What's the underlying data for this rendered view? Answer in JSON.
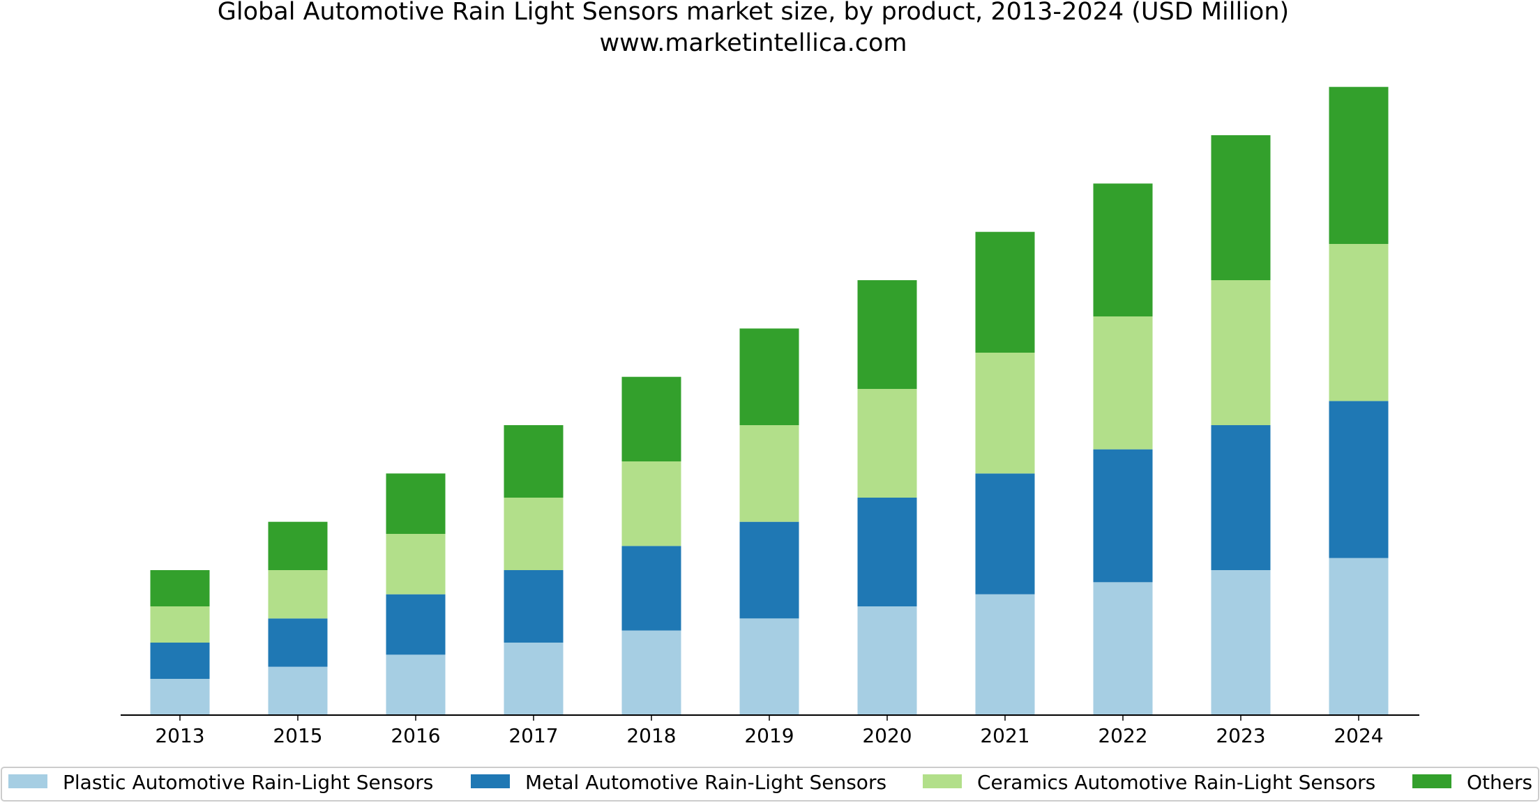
{
  "chart_data": {
    "type": "bar",
    "stacked": true,
    "title": "Global Automotive Rain Light Sensors market size, by product, 2013-2024 (USD Million)",
    "subtitle": "www.marketintellica.com",
    "xlabel": "",
    "ylabel": "",
    "categories": [
      "2013",
      "2015",
      "2016",
      "2017",
      "2018",
      "2019",
      "2020",
      "2021",
      "2022",
      "2023",
      "2024"
    ],
    "ylim": [
      0,
      27
    ],
    "grid": false,
    "y_axis_visible": false,
    "legend_position": "bottom",
    "series": [
      {
        "name": "Plastic Automotive Rain-Light Sensors",
        "color": "#a6cee3",
        "values": [
          1.5,
          2.0,
          2.5,
          3.0,
          3.5,
          4.0,
          4.5,
          5.0,
          5.5,
          6.0,
          6.5
        ]
      },
      {
        "name": "Metal Automotive Rain-Light Sensors",
        "color": "#1f78b4",
        "values": [
          1.5,
          2.0,
          2.5,
          3.0,
          3.5,
          4.0,
          4.5,
          5.0,
          5.5,
          6.0,
          6.5
        ]
      },
      {
        "name": "Ceramics Automotive Rain-Light Sensors",
        "color": "#b2df8a",
        "values": [
          1.5,
          2.0,
          2.5,
          3.0,
          3.5,
          4.0,
          4.5,
          5.0,
          5.5,
          6.0,
          6.5
        ]
      },
      {
        "name": "Others",
        "color": "#33a02c",
        "values": [
          1.5,
          2.0,
          2.5,
          3.0,
          3.5,
          4.0,
          4.5,
          5.0,
          5.5,
          6.0,
          6.5
        ]
      }
    ]
  }
}
